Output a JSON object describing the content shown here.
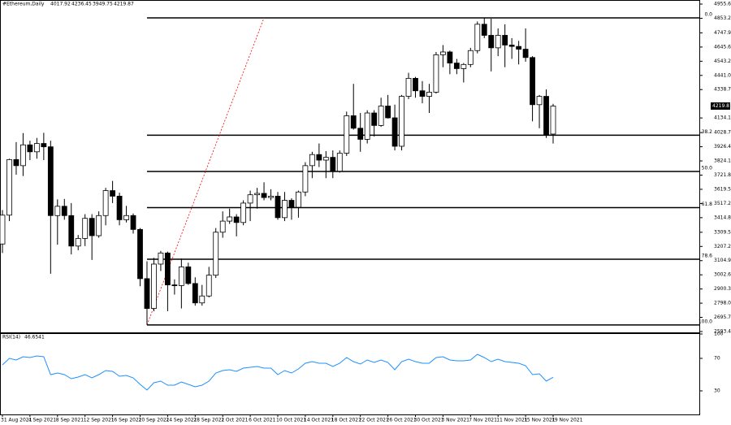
{
  "chart_data": {
    "type": "candlestick",
    "title": "#Ethereum,Daily",
    "categories": [
      "31 Aug 2021",
      null,
      null,
      null,
      "4 Sep 2021",
      null,
      null,
      null,
      "8 Sep 2021",
      null,
      null,
      null,
      "12 Sep 2021",
      null,
      null,
      null,
      "16 Sep 2021",
      null,
      null,
      null,
      "20 Sep 2021",
      null,
      null,
      null,
      "24 Sep 2021",
      null,
      null,
      null,
      "28 Sep 2021",
      null,
      null,
      null,
      "2 Oct 2021",
      null,
      null,
      null,
      "6 Oct 2021",
      null,
      null,
      null,
      "10 Oct 2021",
      null,
      null,
      null,
      "14 Oct 2021",
      null,
      null,
      null,
      "18 Oct 2021",
      null,
      null,
      null,
      "22 Oct 2021",
      null,
      null,
      null,
      "26 Oct 2021",
      null,
      null,
      null,
      "30 Oct 2021",
      null,
      null,
      null,
      "3 Nov 2021",
      null,
      null,
      null,
      "7 Nov 2021",
      null,
      null,
      null,
      "11 Nov 2021",
      null,
      null,
      null,
      "15 Nov 2021",
      null,
      null,
      null,
      "19 Nov 2021"
    ],
    "open": [
      3225,
      3433,
      3834,
      3790,
      3940,
      3890,
      3950,
      3926,
      3430,
      3497,
      3430,
      3210,
      3265,
      3410,
      3285,
      3430,
      3610,
      3570,
      3400,
      3430,
      3330,
      2975,
      2760,
      3080,
      3160,
      2930,
      2925,
      3060,
      2940,
      2800,
      2850,
      3000,
      3310,
      3390,
      3420,
      3380,
      3520,
      3580,
      3590,
      3560,
      3570,
      3415,
      3540,
      3490,
      3600,
      3790,
      3870,
      3830,
      3850,
      3750,
      3880,
      4150,
      4060,
      3980,
      4170,
      4080,
      4220,
      4135,
      3930,
      4290,
      4420,
      4330,
      4290,
      4320,
      4590,
      4610,
      4530,
      4490,
      4520,
      4620,
      4810,
      4730,
      4640,
      4730,
      4660,
      4650,
      4630,
      4570,
      4230,
      4290,
      4017.92
    ],
    "high": [
      3470,
      3840,
      3960,
      4025,
      3970,
      3990,
      4027,
      3970,
      3547,
      3550,
      3520,
      3290,
      3440,
      3440,
      3460,
      3630,
      3680,
      3595,
      3500,
      3445,
      3340,
      3100,
      3125,
      3175,
      3170,
      2970,
      3120,
      3090,
      2985,
      2930,
      3060,
      3340,
      3460,
      3480,
      3440,
      3540,
      3610,
      3630,
      3670,
      3620,
      3600,
      3600,
      3555,
      3610,
      3815,
      3890,
      3950,
      3895,
      3900,
      3900,
      4180,
      4380,
      4170,
      4190,
      4190,
      4280,
      4300,
      4230,
      4300,
      4460,
      4430,
      4400,
      4380,
      4610,
      4660,
      4620,
      4560,
      4530,
      4640,
      4830,
      4856,
      4850,
      4780,
      4810,
      4710,
      4690,
      4780,
      4580,
      4300,
      4340,
      4236.45
    ],
    "low": [
      3160,
      3390,
      3725,
      3715,
      3830,
      3840,
      3830,
      3010,
      3220,
      3400,
      3150,
      3180,
      3210,
      3110,
      3270,
      3360,
      3520,
      3360,
      3380,
      3300,
      2920,
      2641,
      2740,
      3030,
      2740,
      2860,
      2760,
      2930,
      2780,
      2780,
      2840,
      2980,
      3270,
      3370,
      3280,
      3360,
      3390,
      3480,
      3540,
      3540,
      3400,
      3390,
      3400,
      3415,
      3570,
      3700,
      3780,
      3700,
      3700,
      3740,
      3860,
      4050,
      3890,
      3950,
      4000,
      4070,
      4130,
      3900,
      3900,
      4270,
      4280,
      4240,
      4170,
      4310,
      4500,
      4450,
      4450,
      4390,
      4500,
      4600,
      4710,
      4470,
      4580,
      4500,
      4560,
      4520,
      4540,
      4110,
      4060,
      3990,
      3949.75
    ],
    "close": [
      3433,
      3834,
      3790,
      3940,
      3890,
      3950,
      3926,
      3430,
      3497,
      3430,
      3210,
      3265,
      3410,
      3285,
      3430,
      3610,
      3570,
      3400,
      3430,
      3330,
      2975,
      2760,
      3080,
      3160,
      2930,
      2925,
      3060,
      2940,
      2800,
      2850,
      3000,
      3310,
      3390,
      3420,
      3380,
      3520,
      3580,
      3590,
      3560,
      3570,
      3415,
      3540,
      3490,
      3600,
      3790,
      3870,
      3830,
      3850,
      3750,
      3880,
      4150,
      4060,
      3980,
      4170,
      4080,
      4220,
      4135,
      3930,
      4290,
      4420,
      4330,
      4290,
      4320,
      4590,
      4610,
      4530,
      4490,
      4520,
      4620,
      4810,
      4730,
      4640,
      4730,
      4660,
      4650,
      4630,
      4570,
      4230,
      4290,
      4010,
      4219.87
    ],
    "up_color": "#ffffff",
    "down_color": "#000000",
    "ylim": [
      2581.7,
      4984.9
    ],
    "yticks": [
      {
        "value": 4955.6,
        "label": "4955.60"
      },
      {
        "value": 4853.2,
        "label": "4853.20"
      },
      {
        "value": 4747.9,
        "label": "4747.90"
      },
      {
        "value": 4645.6,
        "label": "4645.60"
      },
      {
        "value": 4543.2,
        "label": "4543.20"
      },
      {
        "value": 4441,
        "label": "4441.00"
      },
      {
        "value": 4338.7,
        "label": "4338.70"
      },
      {
        "value": 4134.1,
        "label": "4134.10"
      },
      {
        "value": 4028.7,
        "label": "4028.70"
      },
      {
        "value": 3926.4,
        "label": "3926.40"
      },
      {
        "value": 3824.1,
        "label": "3824.10"
      },
      {
        "value": 3721.8,
        "label": "3721.80"
      },
      {
        "value": 3619.5,
        "label": "3619.50"
      },
      {
        "value": 3517.2,
        "label": "3517.20"
      },
      {
        "value": 3414.8,
        "label": "3414.80"
      },
      {
        "value": 3309.5,
        "label": "3309.50"
      },
      {
        "value": 3207.2,
        "label": "3207.20"
      },
      {
        "value": 3104.9,
        "label": "3104.90"
      },
      {
        "value": 3002.6,
        "label": "3002.60"
      },
      {
        "value": 2900.3,
        "label": "2900.30"
      },
      {
        "value": 2798,
        "label": "2798.00"
      },
      {
        "value": 2695.7,
        "label": "2695.70"
      },
      {
        "value": 2593.4,
        "label": "2593.40"
      }
    ],
    "fibonacci": [
      {
        "label": "0.0",
        "value": 4856
      },
      {
        "label": "38.2",
        "value": 4010
      },
      {
        "label": "50.0",
        "value": 3748
      },
      {
        "label": "61.8",
        "value": 3487
      },
      {
        "label": "78.6",
        "value": 3115
      },
      {
        "label": "100.0",
        "value": 2641
      }
    ],
    "fib_color": "#000000",
    "trend_color": "#ff0000",
    "rsi": {
      "label": "RSI(14)",
      "color": "#1e90ff",
      "ylim": [
        0,
        100
      ],
      "yticks": [
        100,
        70,
        30
      ],
      "values": [
        62,
        70,
        68,
        72,
        71,
        73,
        72,
        50,
        52,
        50,
        45,
        47,
        50,
        46,
        50,
        55,
        54,
        48,
        49,
        46,
        38,
        31,
        40,
        42,
        37,
        37,
        41,
        38,
        35,
        37,
        42,
        52,
        55,
        56,
        54,
        58,
        59,
        60,
        58,
        58,
        50,
        55,
        52,
        57,
        64,
        66,
        64,
        64,
        60,
        64,
        71,
        66,
        63,
        68,
        65,
        68,
        65,
        56,
        66,
        69,
        66,
        64,
        64,
        71,
        72,
        68,
        67,
        67,
        68,
        75,
        71,
        66,
        69,
        66,
        65,
        64,
        61,
        50,
        51,
        42,
        46.6541
      ]
    }
  }
}
